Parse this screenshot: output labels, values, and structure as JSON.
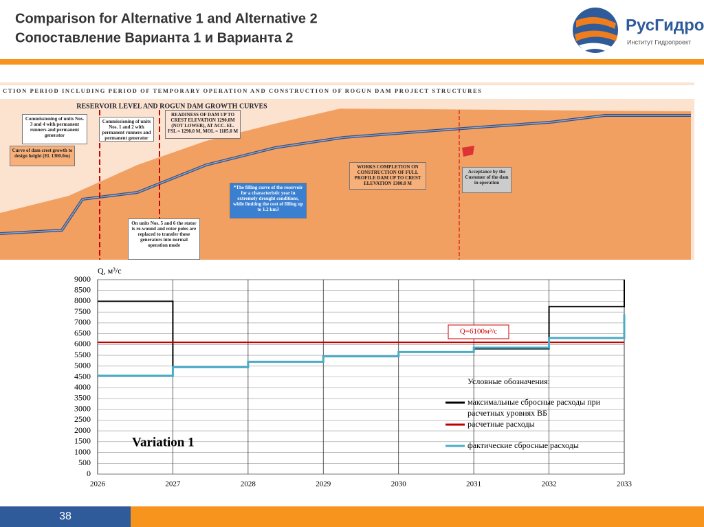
{
  "header": {
    "title": "Comparison for Alternative 1 and Alternative 2",
    "subtitle": "Сопоставление Варианта 1 и Варианта 2"
  },
  "logo": {
    "name": "РусГидро",
    "caption": "Институт Гидропроект"
  },
  "footer": {
    "page_number": "38"
  },
  "top_figure": {
    "banner": "CTION PERIOD INCLUDING PERIOD OF TEMPORARY OPERATION AND CONSTRUCTION OF ROGUN DAM PROJECT STRUCTURES",
    "heading": "RESERVOIR LEVEL AND ROGUN DAM GROWTH CURVES",
    "annotations": [
      "Commissioning of units Nos. 3 and 4 with permanent runners and permanent generator",
      "Commissioning of units Nos. 1 and 2 with permanent runners and permanent generator",
      "READINESS OF DAM UP TO CREST ELEVATION 1290.0M (NOT LOWER), AT ACC. EL. FSL = 1290.0 M, MOL = 1185.0 M",
      "Curve of dam crest growth to design height (El. 1300.0m)",
      "WORKS COMPLETION ON CONSTRUCTION OF FULL PROFILE DAM UP TO CREST ELEVATION 1300.0 M",
      "Acceptance by the Customer of the dam in operation",
      "*The filling curve of the reservoir for a characteristic year in extremely drought conditions, while limiting the cost of filling up to 1.2 km3",
      "On units Nos. 5 and 6 the stator is re-wound and rotor poles are replaced to transfer these generators into normal operation mode"
    ]
  },
  "chart_data": {
    "type": "line",
    "y_label": "Q, м³/с",
    "annotations": [
      "Variation 1",
      "Q=6100м³/с"
    ],
    "legend_title": "Условные обозначения:",
    "xlim": [
      2026,
      2033
    ],
    "xticks": [
      2026,
      2027,
      2028,
      2029,
      2030,
      2031,
      2032,
      2033
    ],
    "ylim": [
      0,
      9000
    ],
    "yticks": [
      0,
      500,
      1000,
      1500,
      2000,
      2500,
      3000,
      3500,
      4000,
      4500,
      5000,
      5500,
      6000,
      6500,
      7000,
      7500,
      8000,
      8500,
      9000
    ],
    "grid": true,
    "series": [
      {
        "name": "максимальные сбросные расходы при расчетных уровнях ВБ",
        "color": "#000000",
        "x": [
          2026,
          2027,
          2027,
          2027,
          2031,
          2032,
          2032,
          2033,
          2033
        ],
        "values": [
          8000,
          8000,
          5000,
          null,
          5800,
          5800,
          7750,
          7750,
          9000
        ]
      },
      {
        "name": "расчетные расходы",
        "color": "#c00000",
        "x": [
          2026,
          2033
        ],
        "values": [
          6100,
          6100
        ]
      },
      {
        "name": "фактические сбросные расходы",
        "color": "#4bacc6",
        "x": [
          2026,
          2027,
          2027,
          2028,
          2028,
          2029,
          2029,
          2030,
          2030,
          2031,
          2031,
          2032,
          2032,
          2033,
          2033
        ],
        "values": [
          4550,
          4550,
          4950,
          4950,
          5200,
          5200,
          5450,
          5450,
          5650,
          5650,
          5850,
          5850,
          6300,
          6300,
          7400
        ]
      }
    ]
  }
}
